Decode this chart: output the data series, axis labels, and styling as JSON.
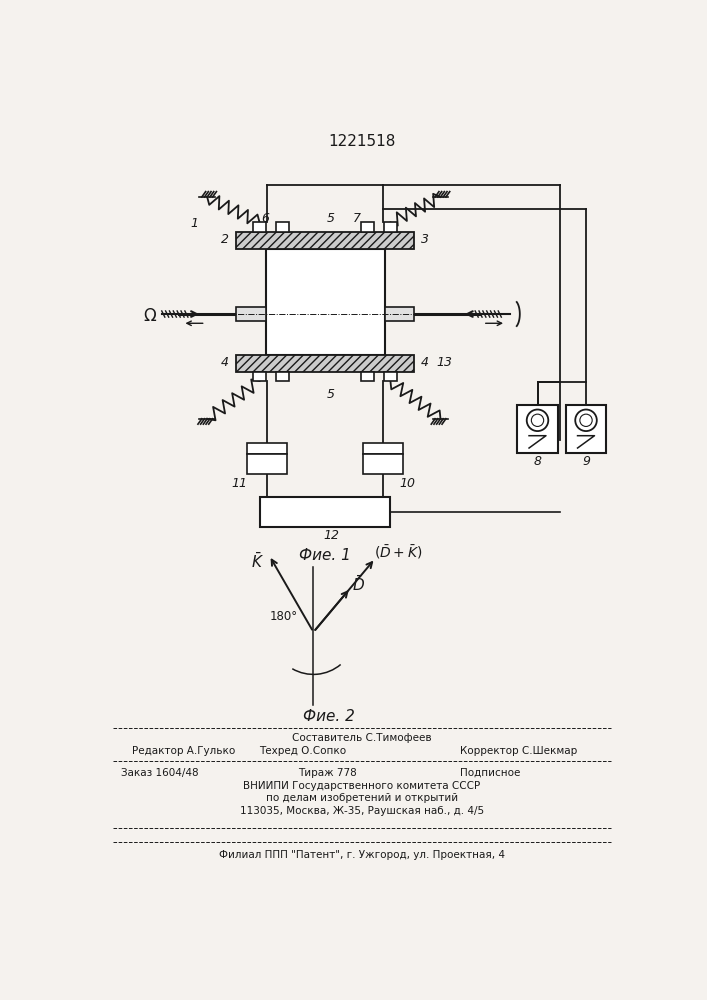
{
  "title": "1221518",
  "fig1_caption": "Фие. 1",
  "fig2_caption": "Фие. 2",
  "bg_color": "#f5f2ee",
  "line_color": "#1a1a1a",
  "footer": {
    "line1": "Составитель С.Тимофеев",
    "line2_left": "Редактор А.Гулько",
    "line2_mid": "Техред О.Сопко",
    "line2_right": "Корректор С.Шекмар",
    "line3_left": "Заказ 1604/48",
    "line3_mid": "Тираж 778",
    "line3_right": "Подписное",
    "line4": "ВНИИПИ Государственного комитета СССР",
    "line5": "по делам изобретений и открытий",
    "line6": "113035, Москва, Ж-35, Раушская наб., д. 4/5",
    "line7": "Филиал ППП \"Патент\", г. Ужгород, ул. Проектная, 4"
  }
}
